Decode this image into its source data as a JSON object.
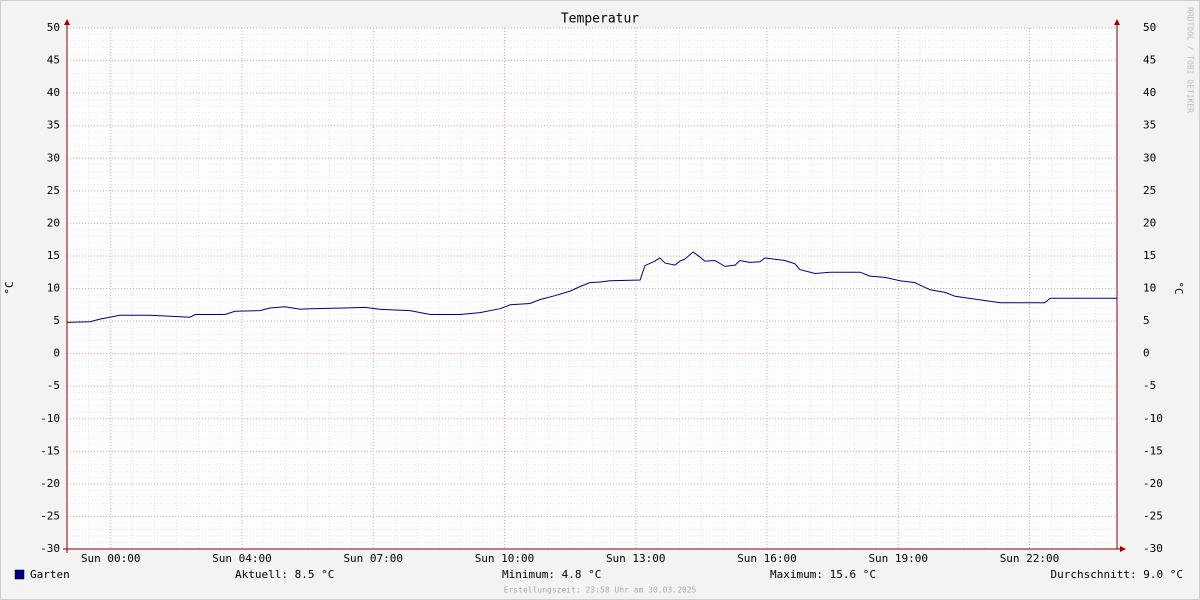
{
  "chart_data": {
    "type": "line",
    "title": "Temperatur",
    "y_label": "°C",
    "y2_label": "°C",
    "xlim": [
      -1,
      23
    ],
    "xticks": [
      {
        "value": 0,
        "label": "Sun 00:00"
      },
      {
        "value": 3,
        "label": "Sun 04:00"
      },
      {
        "value": 6,
        "label": "Sun 07:00"
      },
      {
        "value": 9,
        "label": "Sun 10:00"
      },
      {
        "value": 12,
        "label": "Sun 13:00"
      },
      {
        "value": 15,
        "label": "Sun 16:00"
      },
      {
        "value": 18,
        "label": "Sun 19:00"
      },
      {
        "value": 21,
        "label": "Sun 22:00"
      }
    ],
    "ylim": [
      -30,
      50
    ],
    "yticks": [
      -30,
      -25,
      -20,
      -15,
      -10,
      -5,
      0,
      5,
      10,
      15,
      20,
      25,
      30,
      35,
      40,
      45,
      50
    ],
    "grid": true,
    "x": [
      -1,
      -0.47,
      -0.25,
      -0.02,
      0.21,
      0.9,
      1.47,
      1.81,
      1.93,
      2.61,
      2.84,
      3.41,
      3.64,
      3.98,
      4.33,
      4.55,
      5.35,
      5.81,
      6.15,
      6.84,
      7.3,
      7.98,
      8.44,
      8.9,
      9.13,
      9.58,
      9.81,
      10.15,
      10.5,
      10.73,
      10.95,
      11.18,
      11.41,
      12.1,
      12.21,
      12.44,
      12.55,
      12.67,
      12.9,
      13.01,
      13.12,
      13.31,
      13.47,
      13.58,
      13.81,
      14.04,
      14.27,
      14.38,
      14.61,
      14.84,
      14.95,
      15.18,
      15.41,
      15.64,
      15.75,
      16.1,
      16.44,
      17.13,
      17.35,
      17.7,
      18.04,
      18.38,
      18.5,
      18.73,
      19.07,
      19.3,
      20.33,
      21.35,
      21.47,
      23
    ],
    "series": [
      {
        "name": "Garten",
        "color": "#000080",
        "values": [
          4.8,
          4.9,
          5.3,
          5.6,
          5.9,
          5.9,
          5.7,
          5.6,
          6.0,
          6.0,
          6.5,
          6.6,
          7.0,
          7.2,
          6.8,
          6.9,
          7.0,
          7.1,
          6.8,
          6.6,
          6.0,
          6.0,
          6.3,
          6.9,
          7.5,
          7.7,
          8.3,
          8.9,
          9.6,
          10.3,
          10.9,
          11.0,
          11.2,
          11.3,
          13.5,
          14.2,
          14.7,
          13.9,
          13.6,
          14.2,
          14.5,
          15.6,
          14.8,
          14.2,
          14.3,
          13.4,
          13.6,
          14.3,
          14.0,
          14.1,
          14.7,
          14.5,
          14.3,
          13.8,
          12.9,
          12.3,
          12.5,
          12.5,
          11.9,
          11.7,
          11.2,
          10.9,
          10.5,
          9.8,
          9.4,
          8.8,
          7.8,
          7.8,
          8.5,
          8.5
        ]
      }
    ],
    "legend_stats": [
      "Aktuell: 8.5 °C",
      "Minimum: 4.8 °C",
      "Maximum: 15.6 °C",
      "Durchschnitt: 9.0 °C"
    ],
    "footer": "Erstellungszeit: 23:58 Uhr am 30.03.2025",
    "watermark": "RRDTOOL / TOBI OETIKER"
  }
}
